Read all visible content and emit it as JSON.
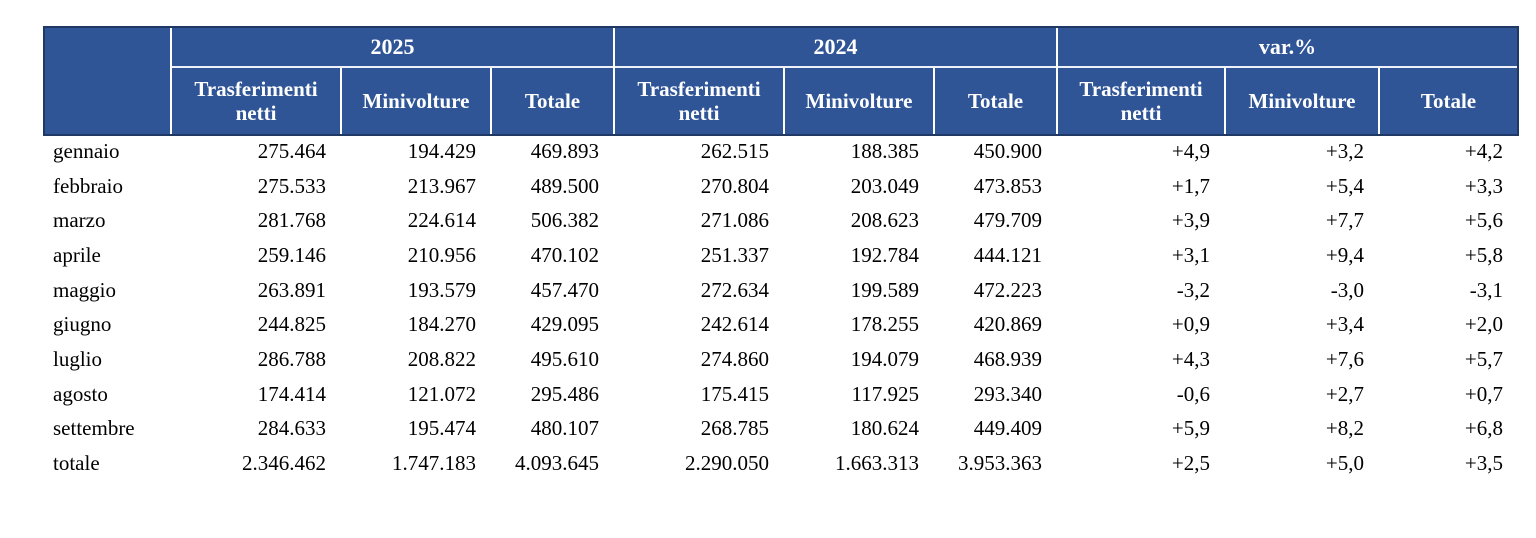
{
  "table": {
    "col_groups": [
      {
        "label": "2025",
        "columns": [
          "Trasferimenti netti",
          "Minivolture",
          "Totale"
        ]
      },
      {
        "label": "2024",
        "columns": [
          "Trasferimenti netti",
          "Minivolture",
          "Totale"
        ]
      },
      {
        "label": "var.%",
        "columns": [
          "Trasferimenti netti",
          "Minivolture",
          "Totale"
        ]
      }
    ],
    "rows": [
      {
        "label": "gennaio",
        "values": [
          "275.464",
          "194.429",
          "469.893",
          "262.515",
          "188.385",
          "450.900",
          "+4,9",
          "+3,2",
          "+4,2"
        ]
      },
      {
        "label": "febbraio",
        "values": [
          "275.533",
          "213.967",
          "489.500",
          "270.804",
          "203.049",
          "473.853",
          "+1,7",
          "+5,4",
          "+3,3"
        ]
      },
      {
        "label": "marzo",
        "values": [
          "281.768",
          "224.614",
          "506.382",
          "271.086",
          "208.623",
          "479.709",
          "+3,9",
          "+7,7",
          "+5,6"
        ]
      },
      {
        "label": "aprile",
        "values": [
          "259.146",
          "210.956",
          "470.102",
          "251.337",
          "192.784",
          "444.121",
          "+3,1",
          "+9,4",
          "+5,8"
        ]
      },
      {
        "label": "maggio",
        "values": [
          "263.891",
          "193.579",
          "457.470",
          "272.634",
          "199.589",
          "472.223",
          "-3,2",
          "-3,0",
          "-3,1"
        ]
      },
      {
        "label": "giugno",
        "values": [
          "244.825",
          "184.270",
          "429.095",
          "242.614",
          "178.255",
          "420.869",
          "+0,9",
          "+3,4",
          "+2,0"
        ]
      },
      {
        "label": "luglio",
        "values": [
          "286.788",
          "208.822",
          "495.610",
          "274.860",
          "194.079",
          "468.939",
          "+4,3",
          "+7,6",
          "+5,7"
        ]
      },
      {
        "label": "agosto",
        "values": [
          "174.414",
          "121.072",
          "295.486",
          "175.415",
          "117.925",
          "293.340",
          "-0,6",
          "+2,7",
          "+0,7"
        ]
      },
      {
        "label": "settembre",
        "values": [
          "284.633",
          "195.474",
          "480.107",
          "268.785",
          "180.624",
          "449.409",
          "+5,9",
          "+8,2",
          "+6,8"
        ]
      },
      {
        "label": "totale",
        "values": [
          "2.346.462",
          "1.747.183",
          "4.093.645",
          "2.290.050",
          "1.663.313",
          "3.953.363",
          "+2,5",
          "+5,0",
          "+3,5"
        ]
      }
    ]
  },
  "colors": {
    "header_bg": "#2f5597",
    "header_border": "#1f3864",
    "separator": "#eef1f8",
    "header_text": "#ffffff",
    "text": "#000000"
  }
}
